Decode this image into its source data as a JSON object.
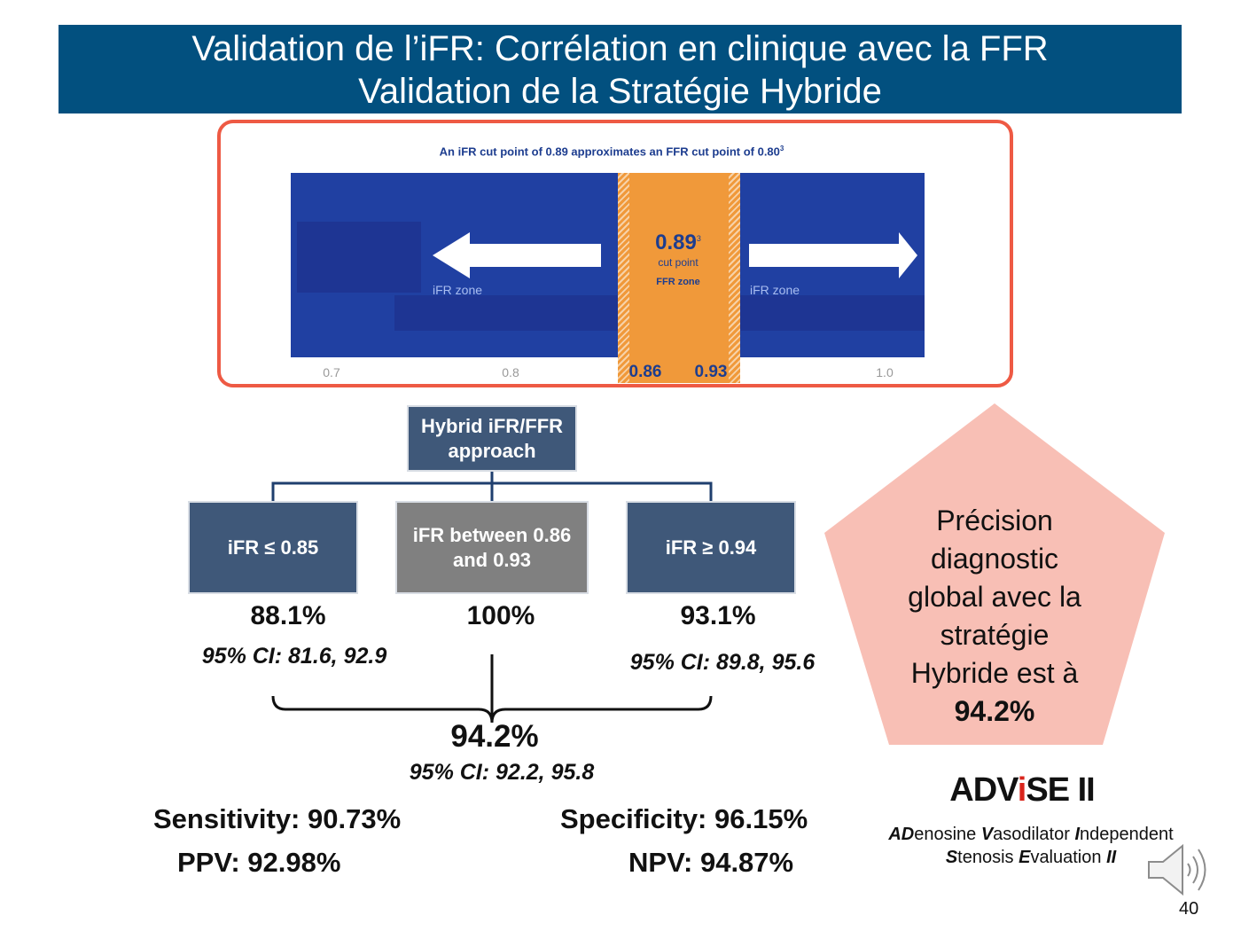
{
  "header": {
    "title_lines": [
      "Validation de l’iFR: Corrélation en clinique avec la FFR",
      "Validation de la Stratégie Hybride"
    ]
  },
  "figure": {
    "caption": {
      "text": "An iFR cut point of 0.89 approximates an FFR cut point of 0.80",
      "superscript": "3"
    },
    "cut_point": {
      "value": "0.89",
      "superscript": "3",
      "label": "cut point",
      "zone": "FFR zone"
    },
    "zone_labels": [
      "iFR zone",
      "iFR zone"
    ],
    "axis_labels": [
      "0.7",
      "0.8",
      "0.86",
      "0.93",
      "1.0"
    ]
  },
  "flowchart": {
    "root": [
      "Hybrid iFR/FFR",
      "approach"
    ],
    "branches": [
      {
        "label": [
          "iFR ≤ 0.85"
        ],
        "result": "88.1%",
        "ci": "95% CI: 81.6, 92.9"
      },
      {
        "label": [
          "iFR between 0.86",
          "and 0.93"
        ],
        "result": "100%"
      },
      {
        "label": [
          "iFR ≥ 0.94"
        ],
        "result": "93.1%",
        "ci": "95% CI: 89.8, 95.6"
      }
    ],
    "overall": {
      "result": "94.2%",
      "ci": "95% CI: 92.2, 95.8"
    }
  },
  "metrics": {
    "sensitivity": "Sensitivity: 90.73%",
    "specificity": "Specificity: 96.15%",
    "ppv": "PPV: 92.98%",
    "npv": "NPV: 94.87%"
  },
  "callout": {
    "lines": [
      "Précision",
      "diagnostic",
      "global avec la",
      "stratégie",
      "Hybride est à",
      "94.2%"
    ]
  },
  "logo": {
    "segments": [
      "ADV",
      "i",
      "SE II"
    ],
    "expansion": [
      [
        "AD",
        "enosine ",
        "V",
        "asodilator ",
        "I",
        "ndependent"
      ],
      [
        "S",
        "tenosis ",
        "E",
        "valuation ",
        "II"
      ]
    ]
  },
  "page_number": "40"
}
